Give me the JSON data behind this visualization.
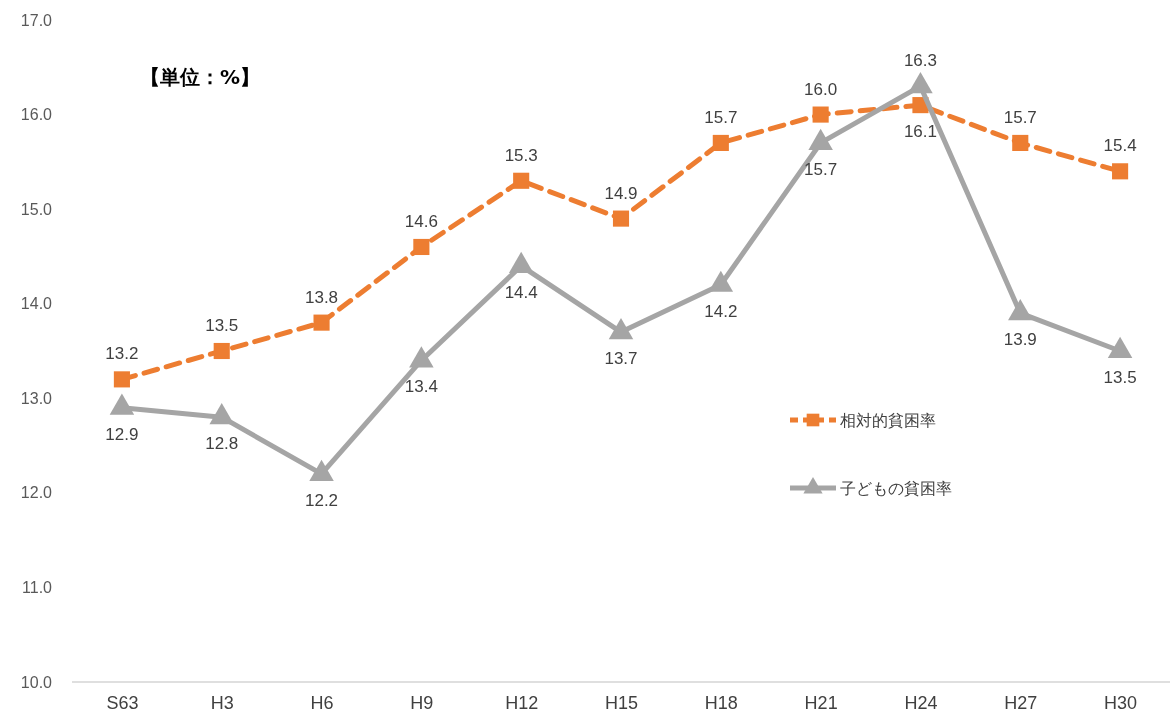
{
  "chart_data": {
    "type": "line",
    "categories": [
      "S63",
      "H3",
      "H6",
      "H9",
      "H12",
      "H15",
      "H18",
      "H21",
      "H24",
      "H27",
      "H30"
    ],
    "series": [
      {
        "name": "相対的貧困率",
        "color": "#ed7d31",
        "marker": "square",
        "line_style": "dashed",
        "values": [
          13.2,
          13.5,
          13.8,
          14.6,
          15.3,
          14.9,
          15.7,
          16.0,
          16.1,
          15.7,
          15.4
        ],
        "value_labels": [
          "13.2",
          "13.5",
          "13.8",
          "14.6",
          "15.3",
          "14.9",
          "15.7",
          "16.0",
          "16.1",
          "15.7",
          "15.4"
        ]
      },
      {
        "name": "子どもの貧困率",
        "color": "#a5a5a5",
        "marker": "triangle",
        "line_style": "solid",
        "values": [
          12.9,
          12.8,
          12.2,
          13.4,
          14.4,
          13.7,
          14.2,
          15.7,
          16.3,
          13.9,
          13.5
        ],
        "value_labels": [
          "12.9",
          "12.8",
          "12.2",
          "13.4",
          "14.4",
          "13.7",
          "14.2",
          "15.7",
          "16.3",
          "13.9",
          "13.5"
        ]
      }
    ],
    "ylim": [
      10,
      17
    ],
    "yticks": [
      {
        "value": 10,
        "label": "10.0"
      },
      {
        "value": 11,
        "label": "11.0"
      },
      {
        "value": 12,
        "label": "12.0"
      },
      {
        "value": 13,
        "label": "13.0"
      },
      {
        "value": 14,
        "label": "14.0"
      },
      {
        "value": 15,
        "label": "15.0"
      },
      {
        "value": 16,
        "label": "16.0"
      },
      {
        "value": 17,
        "label": "17.0"
      }
    ],
    "grid": false,
    "legend": "right",
    "annotations": [
      "【単位：%】"
    ]
  }
}
